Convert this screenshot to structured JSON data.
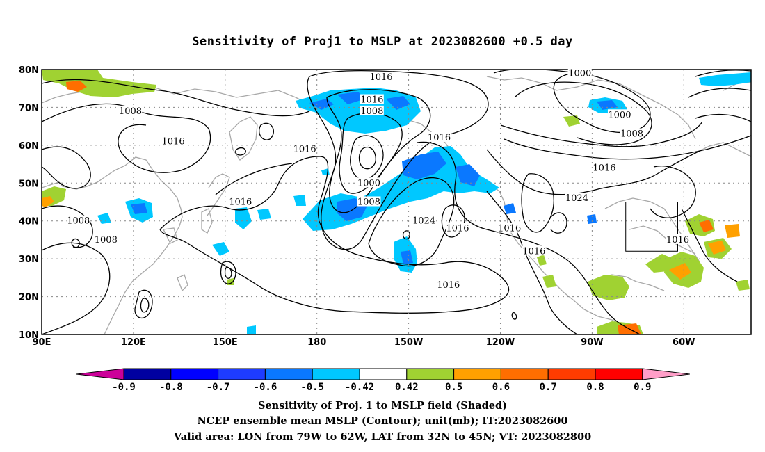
{
  "title": "Sensitivity of Proj1 to MSLP at 2023082600 +0.5 day",
  "map": {
    "lon_labels": [
      "90E",
      "120E",
      "150E",
      "180",
      "150W",
      "120W",
      "90W",
      "60W"
    ],
    "lon_values": [
      90,
      120,
      150,
      180,
      210,
      240,
      270,
      300
    ],
    "lat_labels": [
      "10N",
      "20N",
      "30N",
      "40N",
      "50N",
      "60N",
      "70N",
      "80N"
    ],
    "lat_values": [
      10,
      20,
      30,
      40,
      50,
      60,
      70,
      80
    ],
    "extent": {
      "lon_min": 90,
      "lon_max": 322,
      "lat_min": 10,
      "lat_max": 80
    },
    "valid_area": {
      "lon_min": 281,
      "lon_max": 298,
      "lat_min": 32,
      "lat_max": 45
    },
    "contour_labels": [
      {
        "text": "1016",
        "lon": 201,
        "lat": 78
      },
      {
        "text": "1000",
        "lon": 266,
        "lat": 79
      },
      {
        "text": "1016",
        "lon": 198,
        "lat": 72
      },
      {
        "text": "1008",
        "lon": 198,
        "lat": 69
      },
      {
        "text": "1008",
        "lon": 119,
        "lat": 69
      },
      {
        "text": "1000",
        "lon": 279,
        "lat": 68
      },
      {
        "text": "1008",
        "lon": 283,
        "lat": 63
      },
      {
        "text": "1016",
        "lon": 133,
        "lat": 61
      },
      {
        "text": "1016",
        "lon": 220,
        "lat": 62
      },
      {
        "text": "1016",
        "lon": 176,
        "lat": 59
      },
      {
        "text": "1016",
        "lon": 274,
        "lat": 54
      },
      {
        "text": "1000",
        "lon": 197,
        "lat": 50
      },
      {
        "text": "1024",
        "lon": 265,
        "lat": 46
      },
      {
        "text": "1016",
        "lon": 155,
        "lat": 45
      },
      {
        "text": "1008",
        "lon": 197,
        "lat": 45
      },
      {
        "text": "1008",
        "lon": 102,
        "lat": 40
      },
      {
        "text": "1024",
        "lon": 215,
        "lat": 40
      },
      {
        "text": "1016",
        "lon": 226,
        "lat": 38
      },
      {
        "text": "1016",
        "lon": 243,
        "lat": 38
      },
      {
        "text": "1016",
        "lon": 298,
        "lat": 35
      },
      {
        "text": "1008",
        "lon": 111,
        "lat": 35
      },
      {
        "text": "1016",
        "lon": 251,
        "lat": 32
      },
      {
        "text": "1016",
        "lon": 223,
        "lat": 23
      }
    ]
  },
  "colorbar": {
    "labels": [
      "-0.9",
      "-0.8",
      "-0.7",
      "-0.6",
      "-0.5",
      "-0.42",
      "0.42",
      "0.5",
      "0.6",
      "0.7",
      "0.8",
      "0.9"
    ],
    "colors": [
      "#cc0099",
      "#0000a0",
      "#0000ff",
      "#1e3cff",
      "#0a78ff",
      "#00c8ff",
      "#ffffff",
      "#a0d232",
      "#ffa000",
      "#ff6e00",
      "#ff3c00",
      "#ff0000",
      "#ff9ec8"
    ]
  },
  "captions": {
    "line1": "Sensitivity of Proj. 1 to MSLP field (Shaded)",
    "line2": "NCEP ensemble mean MSLP (Contour); unit(mb); IT:2023082600",
    "line3": "Valid area: LON from 79W to 62W, LAT from 32N to 45N; VT: 2023082800"
  }
}
